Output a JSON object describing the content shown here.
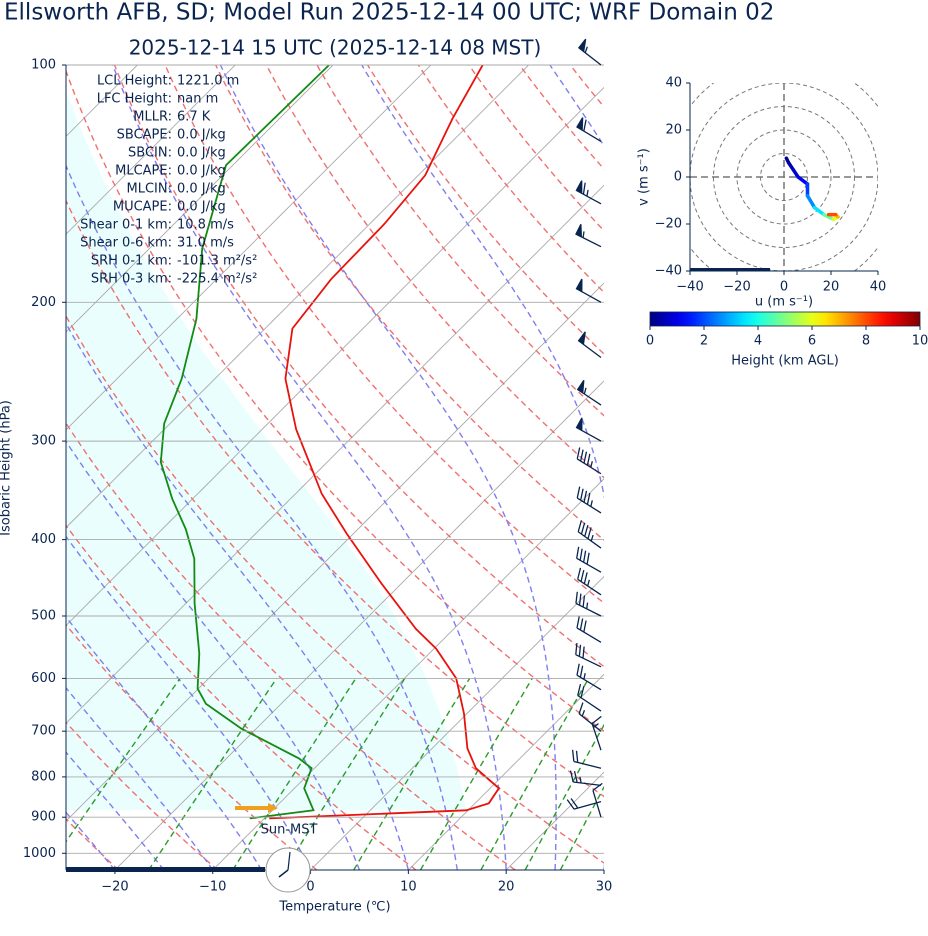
{
  "title": "Ellsworth AFB, SD; Model Run 2025-12-14 00 UTC; WRF Domain 02",
  "chart_data": [
    {
      "type": "skewt",
      "title": "2025-12-14 15 UTC  (2025-12-14 08 MST)",
      "x_label": "Temperature (℃)",
      "y_label": "Isobaric Height (hPa)",
      "xlim": [
        -25,
        30
      ],
      "xticks": [
        {
          "value": -20,
          "label": "−20"
        },
        {
          "value": -10,
          "label": "−10"
        },
        0,
        10,
        20,
        30
      ],
      "ylim": [
        1050,
        100
      ],
      "yticks": [
        100,
        200,
        300,
        400,
        500,
        600,
        700,
        800,
        900,
        1000
      ],
      "log_y": true,
      "grid": true,
      "series": [
        {
          "color": "#e8120c",
          "y": [
            903,
            882,
            864,
            827,
            780,
            736,
            665,
            600,
            550,
            519,
            455,
            393,
            350,
            290,
            250,
            216,
            187,
            159,
            138,
            117,
            100
          ],
          "values": [
            -9.5,
            9.8,
            11.4,
            10.9,
            6.5,
            3.6,
            -0.3,
            -4.7,
            -9.8,
            -13.9,
            -22.0,
            -30.7,
            -37.3,
            -46.5,
            -52.8,
            -57.2,
            -58.3,
            -58.5,
            -59.3,
            -62.3,
            -64.7
          ]
        },
        {
          "color": "#138a13",
          "y": [
            903,
            882,
            827,
            780,
            758,
            695,
            646,
            618,
            558,
            482,
            423,
            388,
            355,
            319,
            285,
            250,
            210,
            171,
            134,
            100
          ],
          "values": [
            -11.5,
            -5.8,
            -9.0,
            -10.3,
            -12.6,
            -21.5,
            -27.7,
            -30.1,
            -33.5,
            -39.1,
            -43.7,
            -47.6,
            -52.1,
            -57.0,
            -60.6,
            -63.4,
            -68.0,
            -74.6,
            -80.7,
            -80.4
          ]
        }
      ],
      "barbs": {
        "color": "#0a2450",
        "y": [
          100,
          125,
          150,
          170,
          200,
          235,
          270,
          300,
          330,
          370,
          410,
          440,
          470,
          500,
          540,
          580,
          620,
          660,
          700,
          740,
          780,
          820,
          860,
          900
        ],
        "u": [
          45,
          50,
          55,
          50,
          45,
          40,
          45,
          45,
          40,
          40,
          35,
          35,
          30,
          30,
          25,
          25,
          20,
          15,
          10,
          5,
          20,
          25,
          18,
          3
        ],
        "v": [
          -35,
          -30,
          -30,
          -25,
          -25,
          -30,
          -30,
          -25,
          -25,
          -25,
          -25,
          -20,
          -20,
          -15,
          -15,
          -12,
          -12,
          -10,
          -8,
          -15,
          -5,
          -3,
          5,
          -10
        ]
      },
      "annotations": [
        {
          "label": "LCL Height:",
          "value": "1221.0 m"
        },
        {
          "label": "LFC Height:",
          "value": "nan m"
        },
        {
          "label": "MLLR:",
          "value": "6.7 K"
        },
        {
          "label": "SBCAPE:",
          "value": "0.0 J/kg"
        },
        {
          "label": "SBCIN:",
          "value": "0.0 J/kg"
        },
        {
          "label": "MLCAPE:",
          "value": "0.0 J/kg"
        },
        {
          "label": "MLCIN:",
          "value": "0.0 J/kg"
        },
        {
          "label": "MUCAPE:",
          "value": "0.0 J/kg"
        },
        {
          "label": "Shear 0-1 km:",
          "value": "10.8 m/s"
        },
        {
          "label": "Shear 0-6 km:",
          "value": "31.0 m/s"
        },
        {
          "label": "SRH 0-1 km:",
          "value": "-101.3 m²/s²"
        },
        {
          "label": "SRH 0-3 km:",
          "value": "-225.4 m²/s²"
        }
      ],
      "clock_label": "Sun-MST"
    },
    {
      "type": "hodograph",
      "x_label": "u (m s⁻¹)",
      "y_label": "v (m s⁻¹)",
      "xlim": [
        -40,
        40
      ],
      "xticks": [
        {
          "value": -40,
          "label": "−40"
        },
        {
          "value": -20,
          "label": "−20"
        },
        0,
        20,
        40
      ],
      "ylim": [
        -40,
        40
      ],
      "yticks": [
        {
          "value": -40,
          "label": "−40"
        },
        {
          "value": -20,
          "label": "−20"
        },
        0,
        20,
        40
      ],
      "u": [
        1,
        2,
        4,
        6,
        10,
        10,
        13,
        17,
        21,
        23,
        22,
        19
      ],
      "v": [
        8,
        6,
        3,
        0,
        -3,
        -8,
        -13,
        -16,
        -18,
        -17,
        -16,
        -16
      ],
      "height": [
        0.1,
        0.3,
        0.6,
        1,
        1.5,
        2.2,
        3,
        4,
        5.5,
        6.5,
        7.5,
        8.5
      ],
      "colormap": "jet",
      "clim": [
        0,
        10
      ],
      "cticks": [
        0,
        2,
        4,
        6,
        8,
        10
      ],
      "colorbar_label": "Height (km AGL)"
    }
  ]
}
